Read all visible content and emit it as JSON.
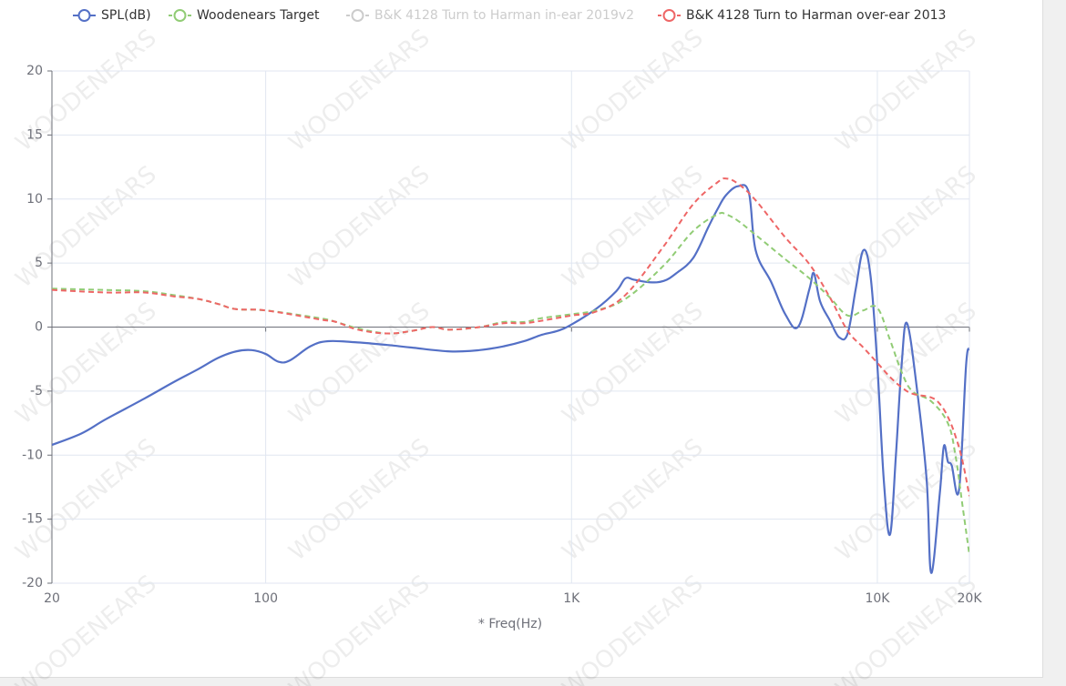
{
  "chart_data": {
    "type": "line",
    "x_label": "* Freq(Hz)",
    "watermark": "WOODENEARS",
    "xlog": true,
    "grid": true,
    "xlim": [
      20,
      20000
    ],
    "ylim": [
      -20,
      20
    ],
    "xticks": [
      20,
      100,
      {
        "value": 1000,
        "label": "1K"
      },
      {
        "value": 10000,
        "label": "10K"
      },
      {
        "value": 20000,
        "label": "20K"
      }
    ],
    "yticks": [
      -20,
      -15,
      -10,
      -5,
      0,
      5,
      10,
      15,
      20
    ],
    "series": [
      {
        "name": "SPL(dB)",
        "color": "#5470c6",
        "dashed": false,
        "hidden": false,
        "x": [
          20,
          25,
          30,
          40,
          50,
          60,
          70,
          80,
          90,
          100,
          110,
          120,
          140,
          160,
          200,
          250,
          300,
          400,
          500,
          600,
          700,
          800,
          900,
          1000,
          1200,
          1400,
          1500,
          1600,
          1800,
          2000,
          2200,
          2500,
          2800,
          3000,
          3200,
          3500,
          3800,
          4000,
          4500,
          5000,
          5500,
          6000,
          6200,
          6500,
          7000,
          7500,
          8000,
          8500,
          9000,
          9500,
          10000,
          10500,
          11000,
          11500,
          12000,
          12500,
          13500,
          14500,
          15000,
          16000,
          16500,
          17000,
          17500,
          18500,
          19500,
          20000
        ],
        "values": [
          -9.2,
          -8.3,
          -7.2,
          -5.6,
          -4.3,
          -3.3,
          -2.4,
          -1.9,
          -1.8,
          -2.1,
          -2.7,
          -2.6,
          -1.5,
          -1.1,
          -1.2,
          -1.4,
          -1.6,
          -1.9,
          -1.8,
          -1.5,
          -1.1,
          -0.6,
          -0.3,
          0.2,
          1.4,
          2.8,
          3.8,
          3.7,
          3.5,
          3.6,
          4.2,
          5.4,
          7.8,
          9.2,
          10.3,
          11.0,
          10.5,
          6.0,
          3.5,
          1.0,
          0.0,
          3.0,
          4.2,
          2.0,
          0.5,
          -0.8,
          -0.5,
          3.0,
          6.0,
          4.0,
          -3.0,
          -12.0,
          -16.2,
          -10.0,
          -3.0,
          0.3,
          -5.0,
          -12.0,
          -19.2,
          -13.0,
          -9.3,
          -10.5,
          -10.8,
          -12.7,
          -3.0,
          -1.7
        ]
      },
      {
        "name": "Woodenears Target",
        "color": "#91cc75",
        "dashed": true,
        "hidden": false,
        "x": [
          20,
          30,
          40,
          50,
          60,
          70,
          80,
          100,
          150,
          170,
          200,
          250,
          300,
          350,
          400,
          500,
          600,
          700,
          800,
          1000,
          1200,
          1500,
          2000,
          2500,
          3000,
          3200,
          3500,
          4000,
          5000,
          6000,
          7000,
          8000,
          9000,
          10000,
          11000,
          12000,
          13000,
          15000,
          17000,
          18000,
          19000,
          20000
        ],
        "values": [
          3.0,
          2.9,
          2.8,
          2.5,
          2.2,
          1.8,
          1.4,
          1.3,
          0.7,
          0.4,
          -0.1,
          -0.5,
          -0.3,
          0.0,
          -0.2,
          0.0,
          0.4,
          0.4,
          0.7,
          1.0,
          1.3,
          2.2,
          4.8,
          7.5,
          8.8,
          8.8,
          8.3,
          7.2,
          5.3,
          3.8,
          2.3,
          0.9,
          1.3,
          1.5,
          -1.0,
          -3.5,
          -5.0,
          -5.8,
          -7.5,
          -10.0,
          -14.0,
          -17.8
        ]
      },
      {
        "name": "B&K 4128 Turn to Harman in-ear 2019v2",
        "color": "#cccccc",
        "dashed": true,
        "hidden": true
      },
      {
        "name": "B&K 4128 Turn to Harman over-ear 2013",
        "color": "#ee6666",
        "dashed": true,
        "hidden": false,
        "x": [
          20,
          30,
          40,
          50,
          60,
          70,
          80,
          100,
          150,
          170,
          200,
          250,
          300,
          350,
          400,
          500,
          600,
          700,
          800,
          1000,
          1200,
          1500,
          2000,
          2500,
          3000,
          3200,
          3500,
          4000,
          5000,
          6000,
          7000,
          8000,
          9000,
          10000,
          11000,
          12000,
          13000,
          15000,
          16000,
          17000,
          18000,
          19000,
          20000
        ],
        "values": [
          2.9,
          2.7,
          2.7,
          2.4,
          2.2,
          1.8,
          1.4,
          1.3,
          0.6,
          0.4,
          -0.2,
          -0.5,
          -0.3,
          0.0,
          -0.2,
          0.0,
          0.3,
          0.3,
          0.5,
          0.9,
          1.2,
          2.5,
          6.3,
          9.6,
          11.3,
          11.6,
          11.2,
          9.9,
          7.0,
          4.9,
          2.3,
          -0.3,
          -1.6,
          -2.8,
          -3.9,
          -4.7,
          -5.2,
          -5.5,
          -6.0,
          -7.0,
          -8.5,
          -10.5,
          -13.2
        ]
      }
    ]
  }
}
